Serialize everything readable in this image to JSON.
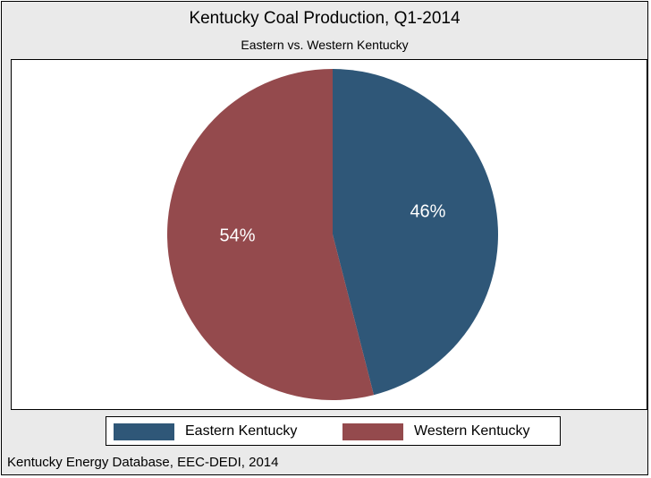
{
  "chart_data": {
    "type": "pie",
    "title": "Kentucky Coal Production, Q1-2014",
    "subtitle": "Eastern vs. Western Kentucky",
    "slices": [
      {
        "name": "Eastern Kentucky",
        "value": 46,
        "label": "46%",
        "color": "#2f5778"
      },
      {
        "name": "Western Kentucky",
        "value": 54,
        "label": "54%",
        "color": "#944a4d"
      }
    ],
    "legend": {
      "placement": "bottom-center",
      "entries": [
        "Eastern Kentucky",
        "Western Kentucky"
      ]
    },
    "source_note": "Kentucky Energy Database, EEC-DEDI, 2014",
    "start_angle": "12 o'clock",
    "direction": "clockwise"
  }
}
